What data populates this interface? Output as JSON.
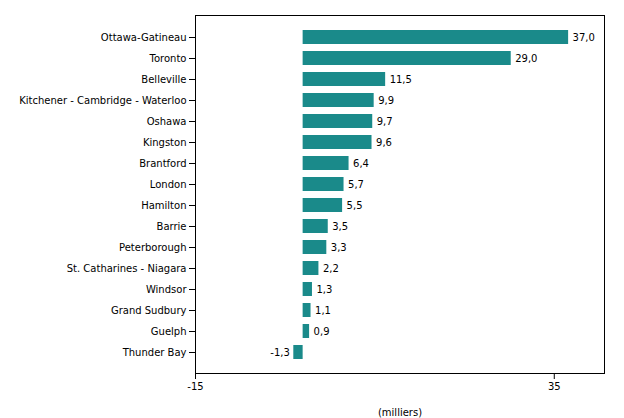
{
  "chart_data": {
    "type": "bar",
    "orientation": "horizontal",
    "categories": [
      "Thunder Bay",
      "Guelph",
      "Grand Sudbury",
      "Windsor",
      "St. Catharines - Niagara",
      "Peterborough",
      "Barrie",
      "Hamilton",
      "London",
      "Brantford",
      "Kingston",
      "Oshawa",
      "Kitchener - Cambridge - Waterloo",
      "Belleville",
      "Toronto",
      "Ottawa-Gatineau"
    ],
    "values": [
      -1.3,
      0.9,
      1.1,
      1.3,
      2.2,
      3.3,
      3.5,
      5.5,
      5.7,
      6.4,
      9.6,
      9.7,
      9.9,
      11.5,
      29.0,
      37.0
    ],
    "value_labels": [
      "-1,3",
      "0,9",
      "1,1",
      "1,3",
      "2,2",
      "3,3",
      "3,5",
      "5,5",
      "5,7",
      "6,4",
      "9,6",
      "9,7",
      "9,9",
      "11,5",
      "29,0",
      "37,0"
    ],
    "color": "#1a8a8a",
    "xlabel": "(milliers)",
    "xlim": [
      -15,
      42
    ],
    "xticks": [
      -15,
      35
    ],
    "data_labels": true,
    "grid": false
  }
}
